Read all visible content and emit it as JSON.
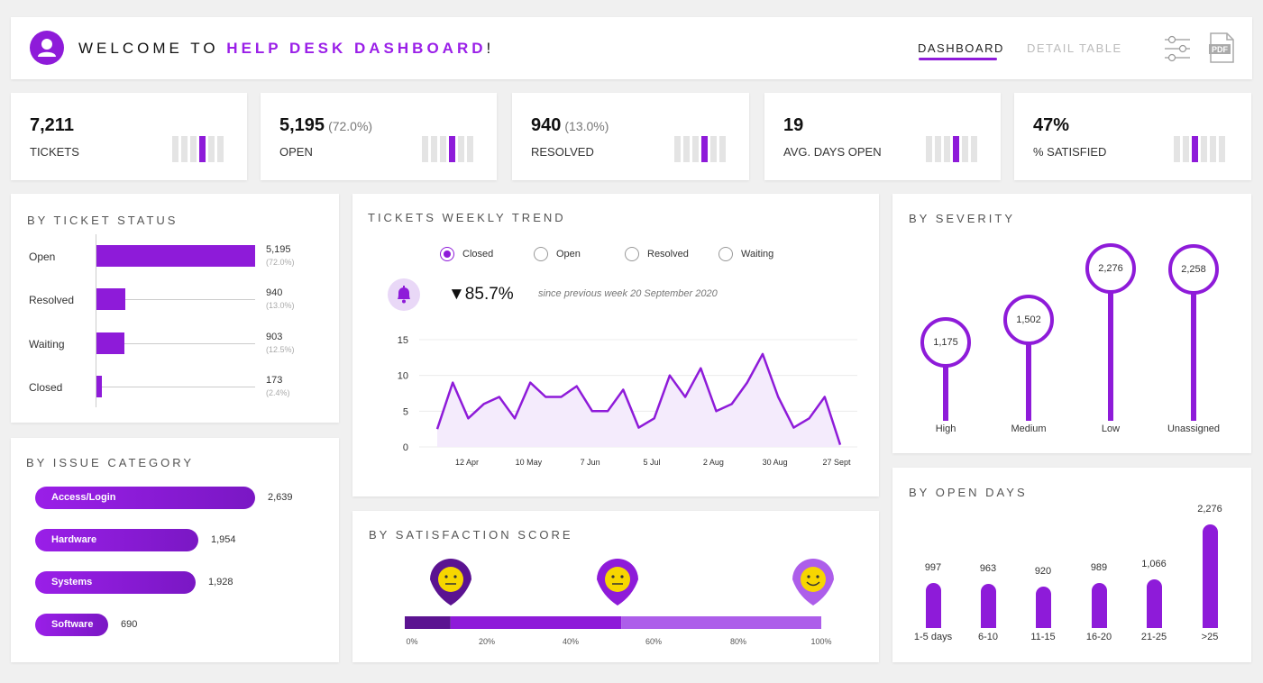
{
  "header": {
    "welcome_prefix": "WELCOME TO",
    "welcome_accent": "HELP DESK DASHBOARD",
    "welcome_suffix": "!",
    "tabs": [
      {
        "label": "DASHBOARD",
        "active": true
      },
      {
        "label": "DETAIL TABLE",
        "active": false
      }
    ],
    "icons": [
      "user-icon",
      "filter-sliders-icon",
      "pdf-icon"
    ],
    "pdf_label": "PDF"
  },
  "colors": {
    "accent": "#8e1bd9",
    "dark": "#5b1391",
    "light": "#ad5eea",
    "fill": "#f4ebfc",
    "emoji": "#f7d600"
  },
  "kpis": [
    {
      "value": "7,211",
      "pct": "",
      "label": "TICKETS"
    },
    {
      "value": "5,195",
      "pct": "(72.0%)",
      "label": "OPEN"
    },
    {
      "value": "940",
      "pct": "(13.0%)",
      "label": "RESOLVED"
    },
    {
      "value": "19",
      "pct": "",
      "label": "AVG. DAYS OPEN"
    },
    {
      "value": "47%",
      "pct": "",
      "label": "% SATISFIED"
    }
  ],
  "ticket_status": {
    "title": "BY TICKET STATUS",
    "items": [
      {
        "label": "Open",
        "value": "5,195",
        "pct": "(72.0%)",
        "share": 1.0
      },
      {
        "label": "Resolved",
        "value": "940",
        "pct": "(13.0%)",
        "share": 0.181
      },
      {
        "label": "Waiting",
        "value": "903",
        "pct": "(12.5%)",
        "share": 0.174
      },
      {
        "label": "Closed",
        "value": "173",
        "pct": "(2.4%)",
        "share": 0.033
      }
    ]
  },
  "issue_category": {
    "title": "BY ISSUE CATEGORY",
    "items": [
      {
        "label": "Access/Login",
        "value": "2,639",
        "share": 1.0
      },
      {
        "label": "Hardware",
        "value": "1,954",
        "share": 0.74
      },
      {
        "label": "Systems",
        "value": "1,928",
        "share": 0.73
      },
      {
        "label": "Software",
        "value": "690",
        "share": 0.33
      }
    ]
  },
  "trend": {
    "title": "TICKETS WEEKLY TREND",
    "options": [
      {
        "label": "Closed",
        "selected": true
      },
      {
        "label": "Open",
        "selected": false
      },
      {
        "label": "Resolved",
        "selected": false
      },
      {
        "label": "Waiting",
        "selected": false
      }
    ],
    "change": "▼85.7%",
    "since": "since previous week 20 September 2020",
    "icon": "bell-icon"
  },
  "severity": {
    "title": "BY SEVERITY",
    "items": [
      {
        "label": "High",
        "value": "1,175",
        "n": 1175
      },
      {
        "label": "Medium",
        "value": "1,502",
        "n": 1502
      },
      {
        "label": "Low",
        "value": "2,276",
        "n": 2276
      },
      {
        "label": "Unassigned",
        "value": "2,258",
        "n": 2258
      }
    ]
  },
  "open_days": {
    "title": "BY OPEN DAYS",
    "items": [
      {
        "label": "1-5 days",
        "value": "997",
        "n": 997
      },
      {
        "label": "6-10",
        "value": "963",
        "n": 963
      },
      {
        "label": "11-15",
        "value": "920",
        "n": 920
      },
      {
        "label": "16-20",
        "value": "989",
        "n": 989
      },
      {
        "label": "21-25",
        "value": "1,066",
        "n": 1066
      },
      {
        "label": ">25",
        "value": "2,276",
        "n": 2276
      }
    ]
  },
  "satisfaction": {
    "title": "BY SATISFACTION SCORE",
    "segments": [
      {
        "start": 0,
        "end": 11
      },
      {
        "start": 11,
        "end": 52
      },
      {
        "start": 52,
        "end": 100
      }
    ],
    "ticks": [
      "0%",
      "20%",
      "40%",
      "60%",
      "80%",
      "100%"
    ],
    "faces": [
      "neutral-face-icon",
      "neutral-face-icon",
      "smiley-face-icon"
    ]
  },
  "chart_data": {
    "type": "line",
    "title": "TICKETS WEEKLY TREND",
    "series": [
      {
        "name": "Closed",
        "values": [
          2.5,
          9,
          4,
          6,
          7,
          4,
          9,
          7,
          7,
          8.5,
          5,
          5,
          8,
          2.7,
          4,
          10,
          7,
          11,
          5,
          6,
          9,
          13,
          7,
          2.7,
          4,
          7,
          0.3
        ]
      }
    ],
    "x_tick_labels": [
      "12 Apr",
      "10 May",
      "7 Jun",
      "5 Jul",
      "2 Aug",
      "30 Aug",
      "27 Sept"
    ],
    "y_ticks": [
      0,
      5,
      10,
      15
    ],
    "ylim": [
      0,
      15
    ],
    "grid": true
  }
}
